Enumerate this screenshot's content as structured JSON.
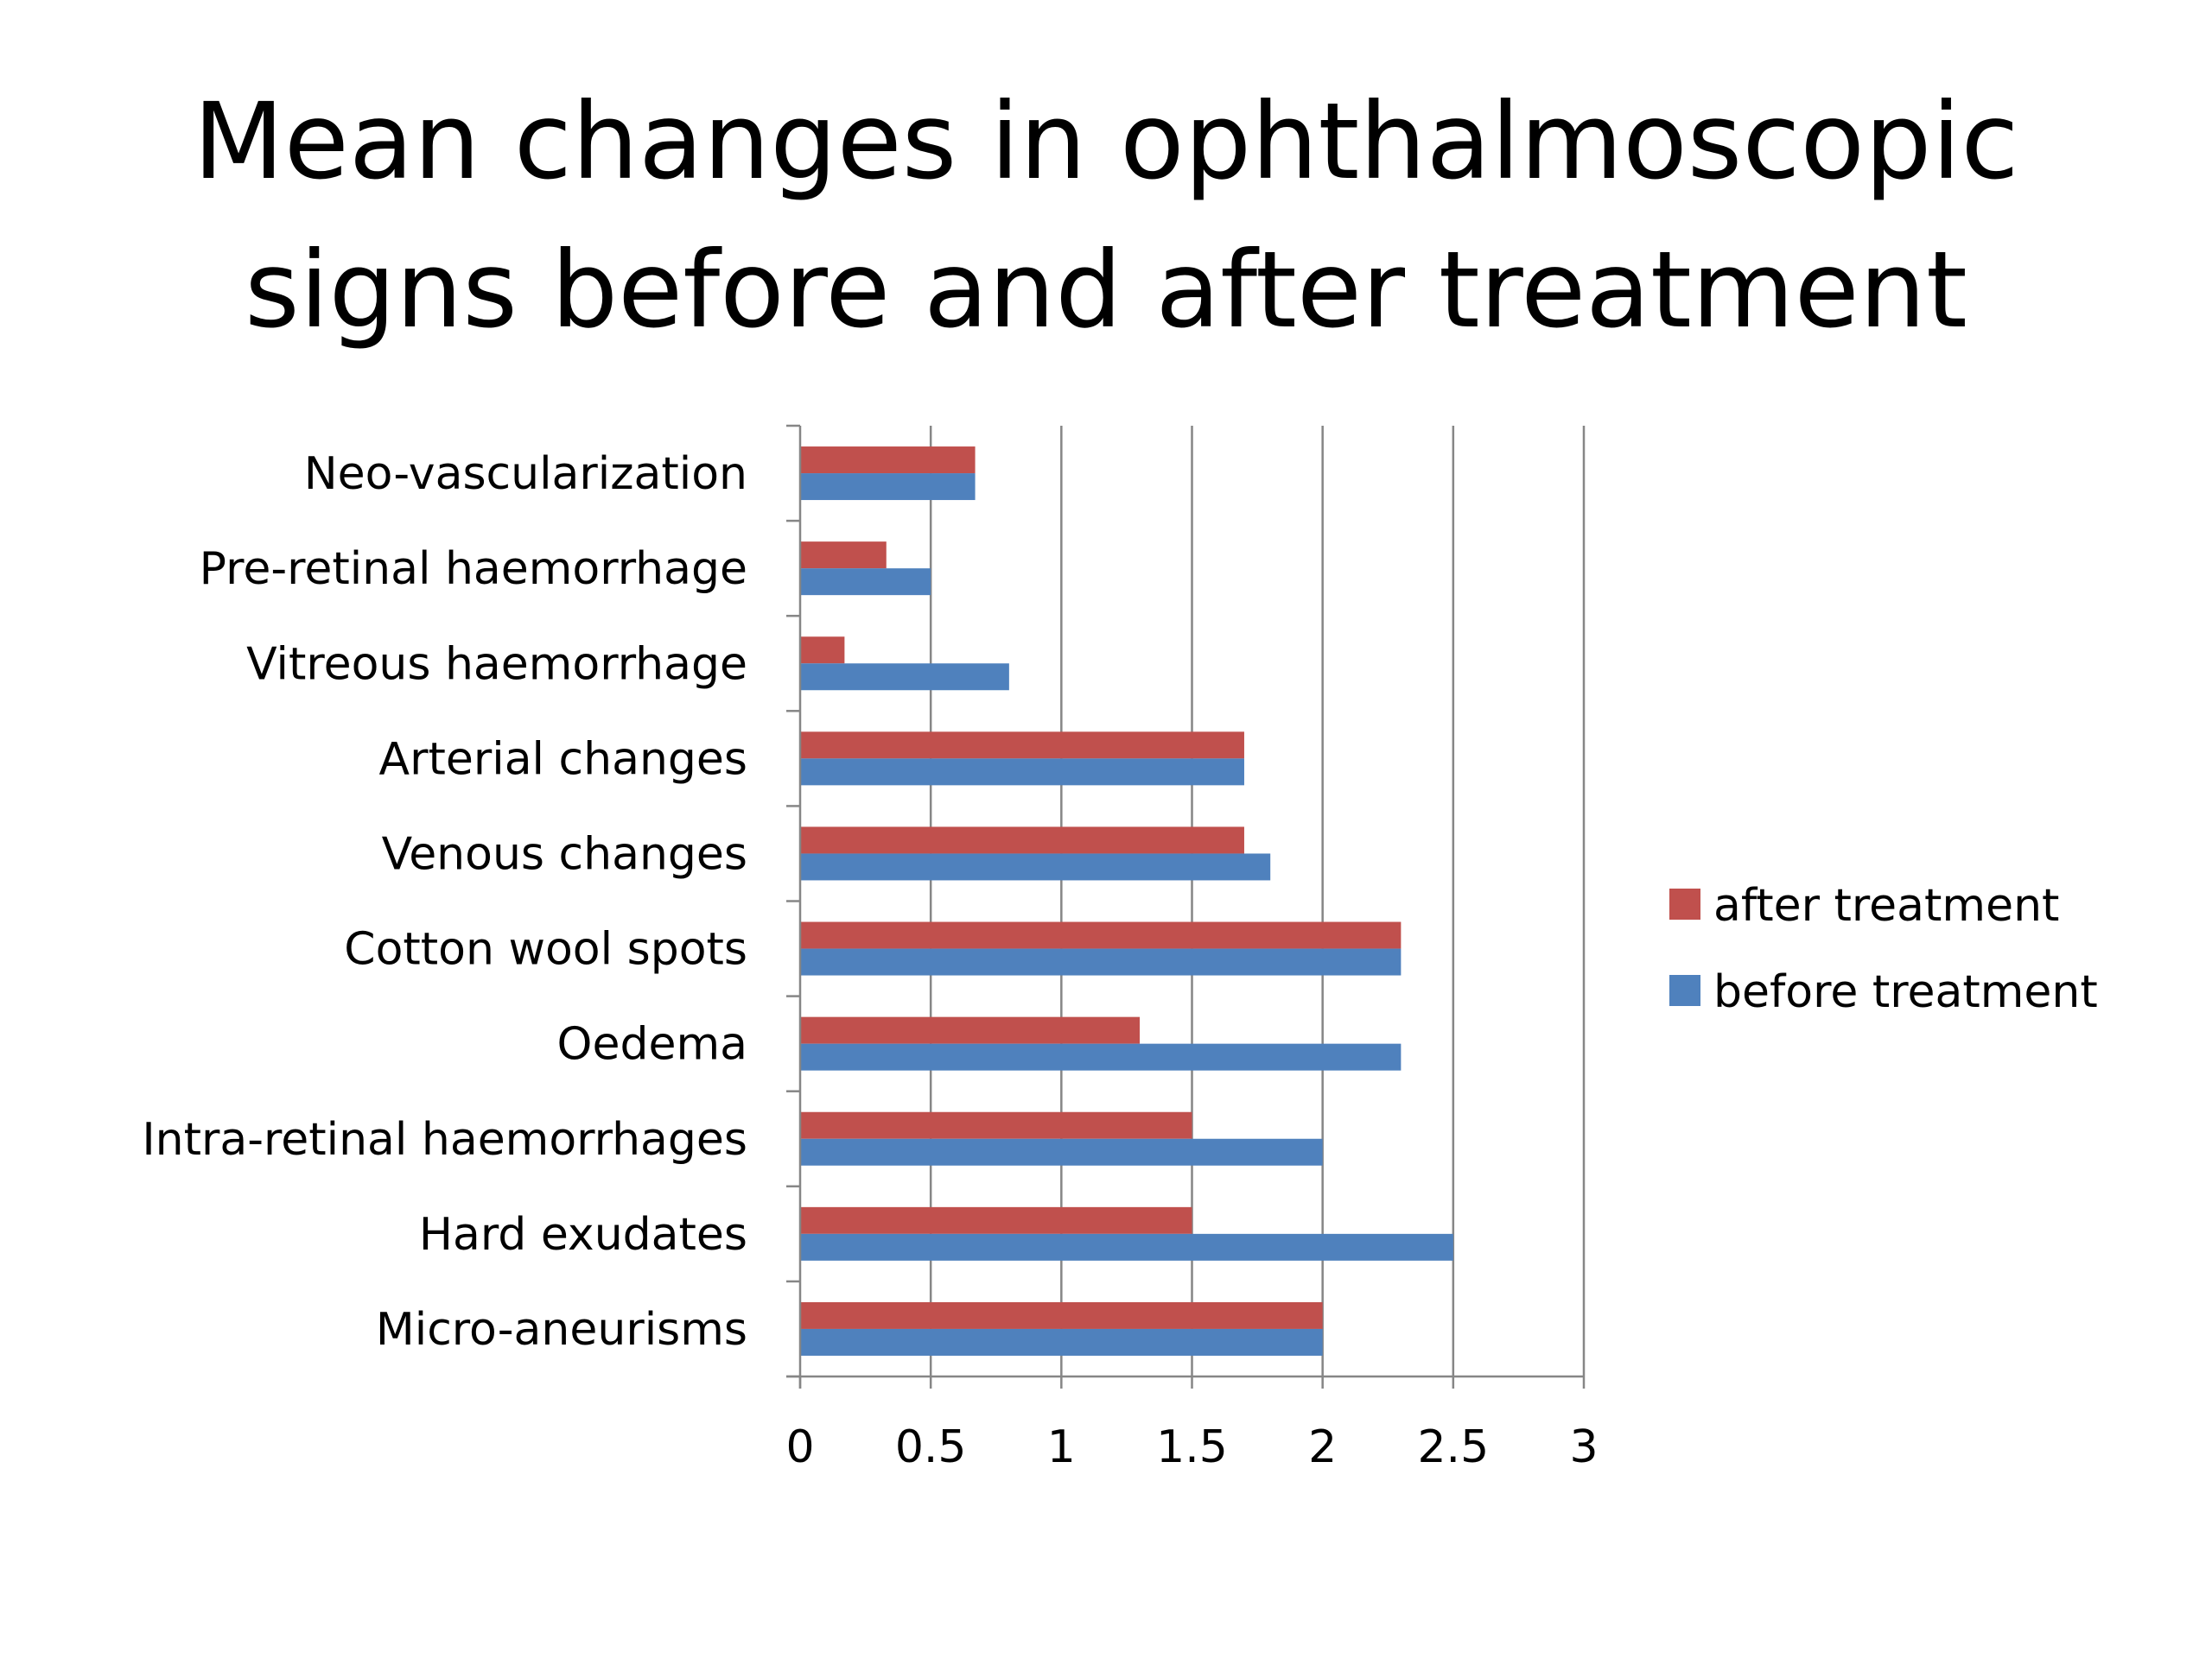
{
  "slide": {
    "title_line1": "Mean changes in ophthalmoscopic",
    "title_line2": "signs before and after treatment"
  },
  "chart_data": {
    "type": "bar",
    "orientation": "horizontal",
    "title": "Mean changes in ophthalmoscopic signs before and after treatment",
    "categories": [
      "Neo-vascularization",
      "Pre-retinal haemorrhage",
      "Vitreous haemorrhage",
      "Arterial changes",
      "Venous changes",
      "Cotton wool spots",
      "Oedema",
      "Intra-retinal haemorrhages",
      "Hard exudates",
      "Micro-aneurisms"
    ],
    "series": [
      {
        "name": "after treatment",
        "color": "#C0504D",
        "values": [
          0.67,
          0.33,
          0.17,
          1.7,
          1.7,
          2.3,
          1.3,
          1.5,
          1.5,
          2.0
        ]
      },
      {
        "name": "before treatment",
        "color": "#4F81BD",
        "values": [
          0.67,
          0.5,
          0.8,
          1.7,
          1.8,
          2.3,
          2.3,
          2.0,
          2.5,
          2.0
        ]
      }
    ],
    "xlim": [
      0,
      3
    ],
    "x_ticks": [
      "0",
      "0.5",
      "1",
      "1.5",
      "2",
      "2.5",
      "3"
    ],
    "grid": "vertical",
    "legend_position": "right"
  }
}
